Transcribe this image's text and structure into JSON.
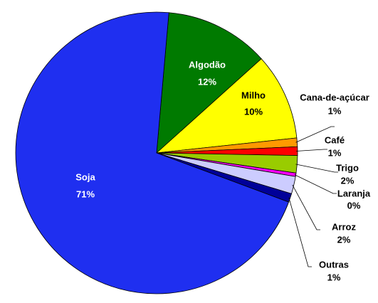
{
  "chart_data": {
    "type": "pie",
    "categories": [
      "Algodão",
      "Milho",
      "Cana-de-açúcar",
      "Café",
      "Trigo",
      "Laranja",
      "Arroz",
      "Outras",
      "Soja"
    ],
    "values": [
      12,
      10,
      1,
      1,
      2,
      0.4,
      2,
      1,
      71
    ],
    "value_labels": [
      "12%",
      "10%",
      "1%",
      "1%",
      "2%",
      "0%",
      "2%",
      "1%",
      "71%"
    ],
    "colors": [
      "#007a00",
      "#ffff00",
      "#ff9900",
      "#ff0000",
      "#99cc00",
      "#ff00ff",
      "#ccccff",
      "#000099",
      "#1f2ff0"
    ]
  }
}
